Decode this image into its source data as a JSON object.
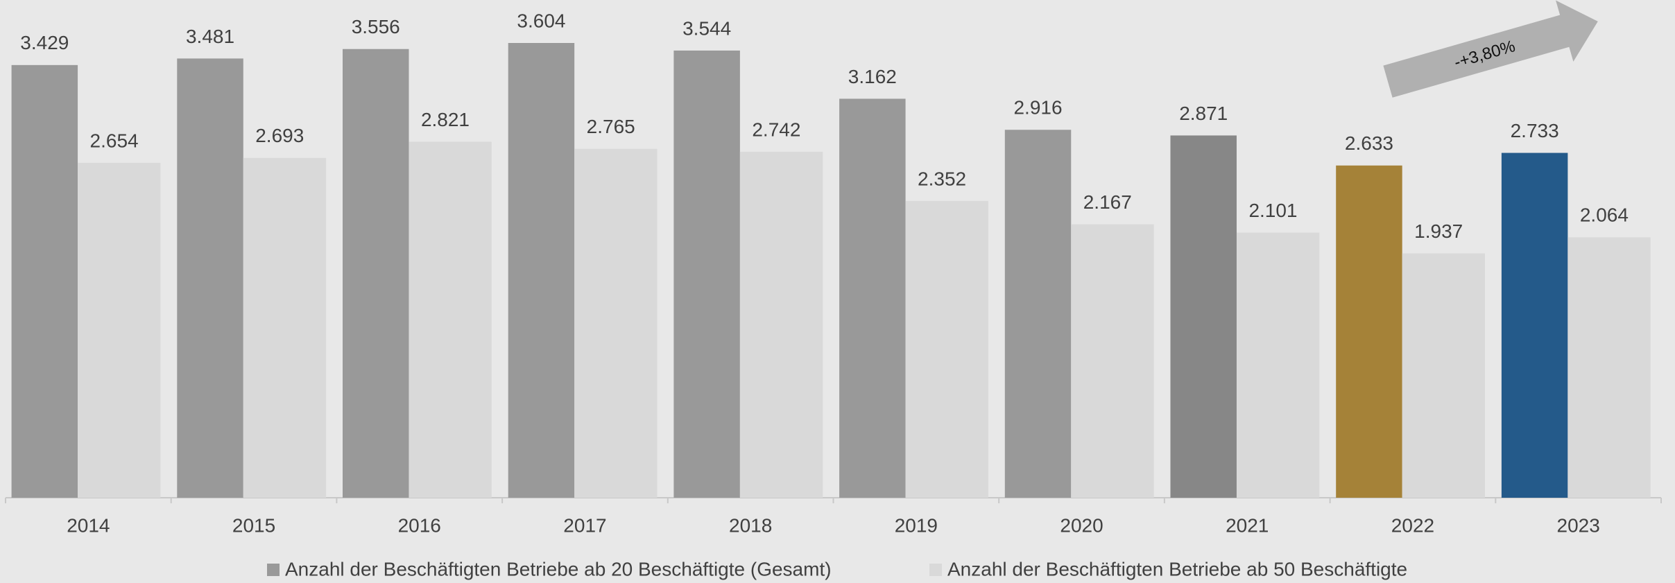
{
  "chart_data": {
    "type": "bar",
    "categories": [
      "2014",
      "2015",
      "2016",
      "2017",
      "2018",
      "2019",
      "2020",
      "2021",
      "2022",
      "2023"
    ],
    "series": [
      {
        "name": "Anzahl der Beschäftigten Betriebe ab 20 Beschäftigte (Gesamt)",
        "color": "#999999",
        "colors": [
          "#999999",
          "#999999",
          "#999999",
          "#999999",
          "#999999",
          "#999999",
          "#999999",
          "#878787",
          "#a58238",
          "#245a8a"
        ],
        "values": [
          3429,
          3481,
          3556,
          3604,
          3544,
          3162,
          2916,
          2871,
          2633,
          2733
        ],
        "value_labels": [
          "3.429",
          "3.481",
          "3.556",
          "3.604",
          "3.544",
          "3.162",
          "2.916",
          "2.871",
          "2.633",
          "2.733"
        ]
      },
      {
        "name": "Anzahl der Beschäftigten Betriebe ab 50 Beschäftigte",
        "color": "#d9d9d9",
        "values": [
          2654,
          2693,
          2821,
          2765,
          2742,
          2352,
          2167,
          2101,
          1937,
          2064
        ],
        "value_labels": [
          "2.654",
          "2.693",
          "2.821",
          "2.765",
          "2.742",
          "2.352",
          "2.167",
          "2.101",
          "1.937",
          "2.064"
        ]
      }
    ],
    "annotation": "-+3,80%",
    "legend": "bottom"
  }
}
